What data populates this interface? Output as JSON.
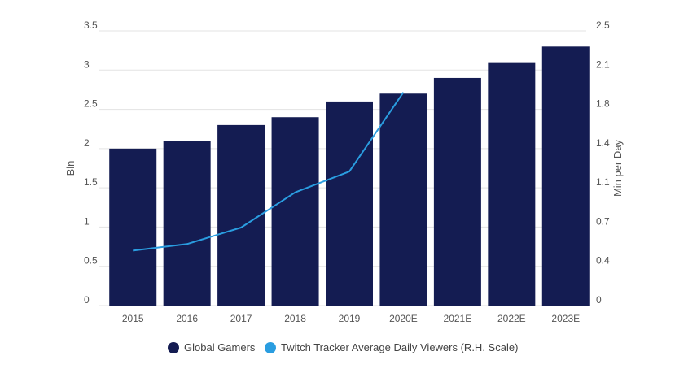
{
  "chart_data": {
    "type": "bar",
    "title": "",
    "xlabel": "",
    "ylabel": "Bln",
    "y2label": "Min per Day",
    "ylim": [
      0,
      3.5
    ],
    "y2lim": [
      0,
      2.5
    ],
    "yticks": [
      "0",
      "0.5",
      "1",
      "1.5",
      "2",
      "2.5",
      "3",
      "3.5"
    ],
    "y2ticks": [
      "0",
      "0.4",
      "0.7",
      "1.1",
      "1.4",
      "1.8",
      "2.1",
      "2.5"
    ],
    "categories": [
      "2015",
      "2016",
      "2017",
      "2018",
      "2019",
      "2020E",
      "2021E",
      "2022E",
      "2023E"
    ],
    "series": [
      {
        "name": "Global Gamers",
        "type": "bar",
        "axis": "left",
        "color": "#141c52",
        "values": [
          2.0,
          2.1,
          2.3,
          2.4,
          2.6,
          2.7,
          2.9,
          3.1,
          3.3
        ]
      },
      {
        "name": "Twitch Tracker Average Daily Viewers (R.H. Scale)",
        "type": "line",
        "axis": "right",
        "color": "#2a9de0",
        "values": [
          0.5,
          0.56,
          0.71,
          1.03,
          1.22,
          1.94,
          null,
          null,
          null
        ]
      }
    ],
    "grid": true,
    "legend_position": "bottom"
  }
}
